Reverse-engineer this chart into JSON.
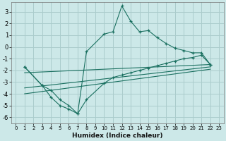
{
  "xlabel": "Humidex (Indice chaleur)",
  "background_color": "#cce8e8",
  "grid_color": "#aacccc",
  "line_color": "#1a7060",
  "xlim": [
    -0.5,
    23.5
  ],
  "ylim": [
    -6.5,
    3.8
  ],
  "yticks": [
    -6,
    -5,
    -4,
    -3,
    -2,
    -1,
    0,
    1,
    2,
    3
  ],
  "xticks": [
    0,
    1,
    2,
    3,
    4,
    5,
    6,
    7,
    8,
    9,
    10,
    11,
    12,
    13,
    14,
    15,
    16,
    17,
    18,
    19,
    20,
    21,
    22,
    23
  ],
  "curve1_x": [
    1,
    3,
    4,
    5,
    6,
    7,
    8,
    10,
    11,
    12,
    13,
    14,
    15,
    16,
    17,
    18,
    19,
    20,
    21,
    22
  ],
  "curve1_y": [
    -1.7,
    -3.3,
    -4.3,
    -5.0,
    -5.3,
    -5.7,
    -0.4,
    1.1,
    1.3,
    3.5,
    2.2,
    1.3,
    1.4,
    0.8,
    0.3,
    -0.1,
    -0.3,
    -0.5,
    -0.5,
    -1.5
  ],
  "curve2_x": [
    1,
    3,
    4,
    5,
    6,
    7,
    8,
    10,
    11,
    12,
    13,
    14,
    15,
    16,
    17,
    18,
    19,
    20,
    21,
    22
  ],
  "curve2_y": [
    -1.7,
    -3.3,
    -3.7,
    -4.5,
    -5.0,
    -5.7,
    -4.5,
    -3.1,
    -2.6,
    -2.4,
    -2.2,
    -2.0,
    -1.8,
    -1.6,
    -1.4,
    -1.2,
    -1.0,
    -0.9,
    -0.7,
    -1.5
  ],
  "regline1_x": [
    1,
    22
  ],
  "regline1_y": [
    -2.2,
    -1.5
  ],
  "regline2_x": [
    1,
    22
  ],
  "regline2_y": [
    -3.5,
    -1.7
  ],
  "regline3_x": [
    1,
    22
  ],
  "regline3_y": [
    -4.0,
    -1.9
  ]
}
